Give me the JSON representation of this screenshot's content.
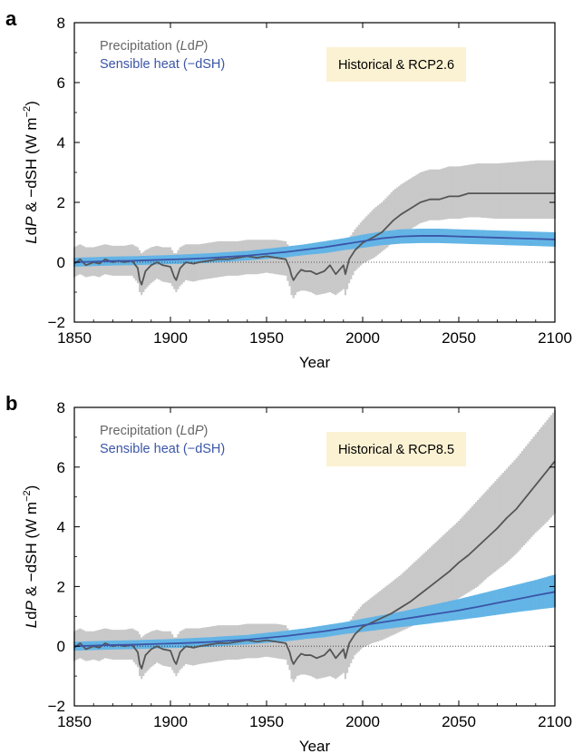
{
  "chart_data": [
    {
      "panel_label": "a",
      "type": "line",
      "annotation": "Historical & RCP2.6",
      "xlabel": "Year",
      "ylabel_parts": [
        "L",
        "dP",
        " & −dSH (W m",
        "−2",
        ")"
      ],
      "xlim": [
        1850,
        2100
      ],
      "ylim": [
        -2,
        8
      ],
      "xticks": [
        1850,
        1900,
        1950,
        2000,
        2050,
        2100
      ],
      "yticks": [
        -2,
        0,
        2,
        4,
        6,
        8
      ],
      "legend_position": "top-left",
      "legend": [
        {
          "parts": [
            "Precipitation (",
            "L",
            "d",
            "P",
            ")"
          ],
          "color": "#666666"
        },
        {
          "parts": [
            "Sensible heat (−dSH)"
          ],
          "color": "#3b55a8"
        }
      ],
      "series": [
        {
          "name": "Precipitation (LdP)",
          "color": "#555555",
          "band_color": "#c8c8c8",
          "x": [
            1850,
            1853,
            1856,
            1860,
            1863,
            1866,
            1870,
            1873,
            1876,
            1880,
            1883,
            1884,
            1885,
            1887,
            1890,
            1893,
            1896,
            1900,
            1902,
            1903,
            1905,
            1908,
            1912,
            1915,
            1920,
            1925,
            1930,
            1935,
            1940,
            1945,
            1950,
            1955,
            1960,
            1962,
            1963,
            1964,
            1966,
            1968,
            1970,
            1973,
            1976,
            1980,
            1983,
            1986,
            1990,
            1991,
            1993,
            1996,
            2000,
            2003,
            2006,
            2010,
            2013,
            2016,
            2020,
            2025,
            2030,
            2035,
            2040,
            2045,
            2050,
            2055,
            2060,
            2070,
            2080,
            2090,
            2100
          ],
          "y": [
            -0.05,
            0.1,
            -0.1,
            0.0,
            -0.05,
            0.1,
            0.0,
            0.05,
            0.0,
            0.05,
            -0.2,
            -0.6,
            -0.75,
            -0.3,
            -0.1,
            0.0,
            -0.1,
            -0.15,
            -0.5,
            -0.6,
            -0.2,
            0.0,
            -0.05,
            0.0,
            0.05,
            0.1,
            0.1,
            0.15,
            0.2,
            0.15,
            0.2,
            0.15,
            0.1,
            -0.2,
            -0.45,
            -0.6,
            -0.4,
            -0.25,
            -0.3,
            -0.3,
            -0.4,
            -0.3,
            -0.1,
            -0.4,
            -0.1,
            -0.4,
            0.1,
            0.4,
            0.65,
            0.75,
            0.85,
            1.0,
            1.2,
            1.4,
            1.6,
            1.8,
            2.0,
            2.1,
            2.1,
            2.2,
            2.2,
            2.3,
            2.3,
            2.3,
            2.3,
            2.3,
            2.3
          ],
          "upper": [
            0.5,
            0.6,
            0.5,
            0.5,
            0.55,
            0.6,
            0.55,
            0.55,
            0.55,
            0.6,
            0.5,
            0.4,
            0.3,
            0.4,
            0.5,
            0.55,
            0.5,
            0.5,
            0.3,
            0.3,
            0.5,
            0.6,
            0.6,
            0.6,
            0.65,
            0.7,
            0.7,
            0.7,
            0.75,
            0.75,
            0.75,
            0.75,
            0.7,
            0.5,
            0.4,
            0.3,
            0.4,
            0.5,
            0.5,
            0.5,
            0.5,
            0.55,
            0.6,
            0.55,
            0.65,
            0.6,
            0.8,
            1.1,
            1.4,
            1.6,
            1.8,
            2.0,
            2.2,
            2.4,
            2.6,
            2.8,
            3.0,
            3.1,
            3.1,
            3.2,
            3.2,
            3.25,
            3.3,
            3.3,
            3.35,
            3.4,
            3.4
          ],
          "lower": [
            -0.5,
            -0.4,
            -0.5,
            -0.45,
            -0.5,
            -0.4,
            -0.45,
            -0.45,
            -0.45,
            -0.45,
            -0.7,
            -1.0,
            -1.1,
            -0.9,
            -0.7,
            -0.55,
            -0.65,
            -0.7,
            -0.9,
            -1.0,
            -0.8,
            -0.6,
            -0.65,
            -0.6,
            -0.55,
            -0.5,
            -0.45,
            -0.45,
            -0.4,
            -0.4,
            -0.35,
            -0.4,
            -0.45,
            -0.8,
            -1.1,
            -1.2,
            -1.0,
            -0.95,
            -0.95,
            -1.0,
            -1.1,
            -1.05,
            -1.0,
            -1.1,
            -0.9,
            -1.1,
            -0.7,
            -0.3,
            -0.05,
            0.05,
            0.15,
            0.35,
            0.5,
            0.7,
            0.9,
            1.1,
            1.3,
            1.4,
            1.4,
            1.45,
            1.45,
            1.5,
            1.5,
            1.45,
            1.45,
            1.45,
            1.45
          ]
        },
        {
          "name": "Sensible heat (−dSH)",
          "color": "#3b55a8",
          "band_color": "#62b4e6",
          "x": [
            1850,
            1860,
            1870,
            1880,
            1890,
            1900,
            1910,
            1920,
            1930,
            1940,
            1950,
            1960,
            1970,
            1980,
            1990,
            2000,
            2010,
            2020,
            2030,
            2040,
            2050,
            2060,
            2070,
            2080,
            2090,
            2100
          ],
          "y": [
            0.0,
            0.02,
            0.04,
            0.05,
            0.07,
            0.09,
            0.11,
            0.14,
            0.18,
            0.22,
            0.28,
            0.34,
            0.42,
            0.5,
            0.6,
            0.7,
            0.8,
            0.86,
            0.88,
            0.88,
            0.86,
            0.84,
            0.82,
            0.8,
            0.78,
            0.76
          ],
          "upper": [
            0.15,
            0.17,
            0.19,
            0.2,
            0.22,
            0.24,
            0.27,
            0.3,
            0.34,
            0.38,
            0.45,
            0.52,
            0.6,
            0.7,
            0.8,
            0.92,
            1.03,
            1.1,
            1.12,
            1.12,
            1.1,
            1.08,
            1.06,
            1.04,
            1.02,
            1.0
          ],
          "lower": [
            -0.15,
            -0.13,
            -0.11,
            -0.1,
            -0.08,
            -0.06,
            -0.05,
            -0.02,
            0.02,
            0.06,
            0.11,
            0.16,
            0.24,
            0.3,
            0.4,
            0.48,
            0.57,
            0.62,
            0.64,
            0.64,
            0.62,
            0.6,
            0.58,
            0.56,
            0.54,
            0.52
          ]
        }
      ]
    },
    {
      "panel_label": "b",
      "type": "line",
      "annotation": "Historical & RCP8.5",
      "xlabel": "Year",
      "ylabel_parts": [
        "L",
        "dP",
        " & −dSH (W m",
        "−2",
        ")"
      ],
      "xlim": [
        1850,
        2100
      ],
      "ylim": [
        -2,
        8
      ],
      "xticks": [
        1850,
        1900,
        1950,
        2000,
        2050,
        2100
      ],
      "yticks": [
        -2,
        0,
        2,
        4,
        6,
        8
      ],
      "legend_position": "top-left",
      "legend": [
        {
          "parts": [
            "Precipitation (",
            "L",
            "d",
            "P",
            ")"
          ],
          "color": "#666666"
        },
        {
          "parts": [
            "Sensible heat (−dSH)"
          ],
          "color": "#3b55a8"
        }
      ],
      "series": [
        {
          "name": "Precipitation (LdP)",
          "color": "#555555",
          "band_color": "#c8c8c8",
          "x": [
            1850,
            1853,
            1856,
            1860,
            1863,
            1866,
            1870,
            1873,
            1876,
            1880,
            1883,
            1884,
            1885,
            1887,
            1890,
            1893,
            1896,
            1900,
            1902,
            1903,
            1905,
            1908,
            1912,
            1915,
            1920,
            1925,
            1930,
            1935,
            1940,
            1945,
            1950,
            1955,
            1960,
            1962,
            1963,
            1964,
            1966,
            1968,
            1970,
            1973,
            1976,
            1980,
            1983,
            1986,
            1990,
            1991,
            1993,
            1996,
            2000,
            2005,
            2010,
            2015,
            2020,
            2025,
            2030,
            2035,
            2040,
            2045,
            2050,
            2055,
            2060,
            2065,
            2070,
            2075,
            2080,
            2085,
            2090,
            2095,
            2100
          ],
          "y": [
            -0.05,
            0.1,
            -0.1,
            0.0,
            -0.05,
            0.1,
            0.0,
            0.05,
            0.0,
            0.05,
            -0.2,
            -0.6,
            -0.75,
            -0.3,
            -0.1,
            0.0,
            -0.1,
            -0.15,
            -0.5,
            -0.6,
            -0.2,
            0.0,
            -0.05,
            0.0,
            0.05,
            0.1,
            0.1,
            0.15,
            0.2,
            0.15,
            0.2,
            0.15,
            0.1,
            -0.2,
            -0.45,
            -0.6,
            -0.4,
            -0.25,
            -0.3,
            -0.3,
            -0.4,
            -0.3,
            -0.1,
            -0.4,
            -0.1,
            -0.4,
            0.1,
            0.4,
            0.65,
            0.8,
            0.95,
            1.1,
            1.3,
            1.5,
            1.75,
            2.0,
            2.25,
            2.5,
            2.8,
            3.05,
            3.35,
            3.65,
            3.95,
            4.3,
            4.6,
            5.0,
            5.4,
            5.8,
            6.2
          ],
          "upper": [
            0.5,
            0.6,
            0.5,
            0.5,
            0.55,
            0.6,
            0.55,
            0.55,
            0.55,
            0.6,
            0.5,
            0.4,
            0.3,
            0.4,
            0.5,
            0.55,
            0.5,
            0.5,
            0.3,
            0.3,
            0.5,
            0.6,
            0.6,
            0.6,
            0.65,
            0.7,
            0.7,
            0.7,
            0.75,
            0.75,
            0.75,
            0.75,
            0.7,
            0.5,
            0.4,
            0.3,
            0.4,
            0.5,
            0.5,
            0.5,
            0.5,
            0.55,
            0.6,
            0.55,
            0.65,
            0.6,
            0.8,
            1.1,
            1.4,
            1.65,
            1.9,
            2.15,
            2.4,
            2.7,
            3.0,
            3.3,
            3.6,
            3.9,
            4.2,
            4.55,
            4.9,
            5.25,
            5.6,
            5.95,
            6.3,
            6.7,
            7.1,
            7.5,
            7.9
          ],
          "lower": [
            -0.5,
            -0.4,
            -0.5,
            -0.45,
            -0.5,
            -0.4,
            -0.45,
            -0.45,
            -0.45,
            -0.45,
            -0.7,
            -1.0,
            -1.1,
            -0.9,
            -0.7,
            -0.55,
            -0.65,
            -0.7,
            -0.9,
            -1.0,
            -0.8,
            -0.6,
            -0.65,
            -0.6,
            -0.55,
            -0.5,
            -0.45,
            -0.45,
            -0.4,
            -0.4,
            -0.35,
            -0.4,
            -0.45,
            -0.8,
            -1.1,
            -1.2,
            -1.0,
            -0.95,
            -0.95,
            -1.0,
            -1.1,
            -1.05,
            -1.0,
            -1.1,
            -0.9,
            -1.1,
            -0.7,
            -0.3,
            -0.05,
            0.1,
            0.2,
            0.35,
            0.5,
            0.65,
            0.8,
            1.0,
            1.2,
            1.4,
            1.6,
            1.8,
            2.0,
            2.3,
            2.55,
            2.8,
            3.1,
            3.45,
            3.8,
            4.1,
            4.45
          ]
        },
        {
          "name": "Sensible heat (−dSH)",
          "color": "#3b55a8",
          "band_color": "#62b4e6",
          "x": [
            1850,
            1860,
            1870,
            1880,
            1890,
            1900,
            1910,
            1920,
            1930,
            1940,
            1950,
            1960,
            1970,
            1980,
            1990,
            2000,
            2010,
            2020,
            2030,
            2040,
            2050,
            2060,
            2070,
            2080,
            2090,
            2100
          ],
          "y": [
            0.0,
            0.02,
            0.04,
            0.05,
            0.07,
            0.09,
            0.11,
            0.14,
            0.18,
            0.22,
            0.28,
            0.34,
            0.42,
            0.5,
            0.6,
            0.7,
            0.8,
            0.9,
            1.0,
            1.1,
            1.2,
            1.32,
            1.45,
            1.57,
            1.7,
            1.82
          ],
          "upper": [
            0.15,
            0.17,
            0.19,
            0.2,
            0.22,
            0.24,
            0.27,
            0.3,
            0.34,
            0.38,
            0.45,
            0.52,
            0.6,
            0.7,
            0.8,
            0.92,
            1.04,
            1.16,
            1.3,
            1.44,
            1.58,
            1.74,
            1.9,
            2.06,
            2.22,
            2.4
          ],
          "lower": [
            -0.15,
            -0.13,
            -0.11,
            -0.1,
            -0.08,
            -0.06,
            -0.05,
            -0.02,
            0.02,
            0.06,
            0.11,
            0.16,
            0.24,
            0.3,
            0.4,
            0.48,
            0.56,
            0.64,
            0.72,
            0.8,
            0.88,
            0.96,
            1.05,
            1.14,
            1.22,
            1.3
          ]
        }
      ]
    }
  ]
}
